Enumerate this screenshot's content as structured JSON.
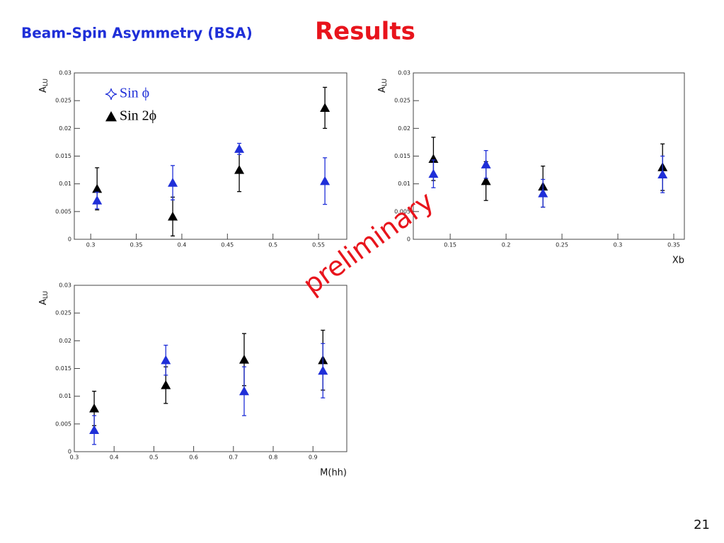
{
  "slide": {
    "title": "Beam-Spin Asymmetry (BSA)",
    "title_highlight": "Results",
    "annotation": "preliminary",
    "page_number": 21
  },
  "chart_data": [
    {
      "type": "scatter",
      "y_label": "A",
      "y_label_sub": "LU",
      "xlim": [
        0.282,
        0.581
      ],
      "xticks": [
        0.3,
        0.35,
        0.4,
        0.45,
        0.5,
        0.55
      ],
      "ylim": [
        0,
        0.03
      ],
      "yticks": [
        0,
        0.005,
        0.01,
        0.015,
        0.02,
        0.025,
        0.03
      ],
      "legend": "upper left",
      "series": [
        {
          "name": "Sin 2ϕ",
          "color": "#000000",
          "x": [
            0.307,
            0.39,
            0.463,
            0.557
          ],
          "values": [
            0.0091,
            0.0041,
            0.0125,
            0.0237
          ],
          "errors": [
            0.0038,
            0.0035,
            0.0039,
            0.0037
          ]
        },
        {
          "name": "Sin ϕ",
          "color": "#1f2fd8",
          "x": [
            0.307,
            0.39,
            0.463,
            0.557
          ],
          "values": [
            0.007,
            0.0102,
            0.0163,
            0.0105
          ],
          "errors": [
            0.0015,
            0.0031,
            0.001,
            0.0042
          ]
        }
      ]
    },
    {
      "type": "scatter",
      "y_label": "A",
      "y_label_sub": "LU",
      "x_label": "Xb",
      "xlim": [
        0.117,
        0.3595
      ],
      "xticks": [
        0.15,
        0.2,
        0.25,
        0.3,
        0.35
      ],
      "ylim": [
        0,
        0.03
      ],
      "yticks": [
        0,
        0.005,
        0.01,
        0.015,
        0.02,
        0.025,
        0.03
      ],
      "series": [
        {
          "name": "Sin 2ϕ",
          "color": "#000000",
          "x": [
            0.135,
            0.182,
            0.233,
            0.34
          ],
          "values": [
            0.0145,
            0.0105,
            0.0095,
            0.013
          ],
          "errors": [
            0.0039,
            0.0035,
            0.0037,
            0.0042
          ]
        },
        {
          "name": "Sin ϕ",
          "color": "#1f2fd8",
          "x": [
            0.135,
            0.182,
            0.233,
            0.34
          ],
          "values": [
            0.0118,
            0.0135,
            0.0083,
            0.0117
          ],
          "errors": [
            0.0025,
            0.0025,
            0.0025,
            0.0033
          ]
        }
      ]
    },
    {
      "type": "scatter",
      "y_label": "A",
      "y_label_sub": "LU",
      "x_label": "M(hh)",
      "xlim": [
        0.3,
        0.985
      ],
      "xticks": [
        0.3,
        0.4,
        0.5,
        0.6,
        0.7,
        0.8,
        0.9
      ],
      "ylim": [
        0,
        0.03
      ],
      "yticks": [
        0,
        0.005,
        0.01,
        0.015,
        0.02,
        0.025,
        0.03
      ],
      "series": [
        {
          "name": "Sin 2ϕ",
          "color": "#000000",
          "x": [
            0.35,
            0.53,
            0.727,
            0.925
          ],
          "values": [
            0.0078,
            0.012,
            0.0166,
            0.0165
          ],
          "errors": [
            0.0031,
            0.0033,
            0.0047,
            0.0054
          ]
        },
        {
          "name": "Sin ϕ",
          "color": "#1f2fd8",
          "x": [
            0.35,
            0.53,
            0.727,
            0.925
          ],
          "values": [
            0.0039,
            0.0165,
            0.0109,
            0.0146
          ],
          "errors": [
            0.0026,
            0.0027,
            0.0044,
            0.0049
          ]
        }
      ]
    }
  ]
}
